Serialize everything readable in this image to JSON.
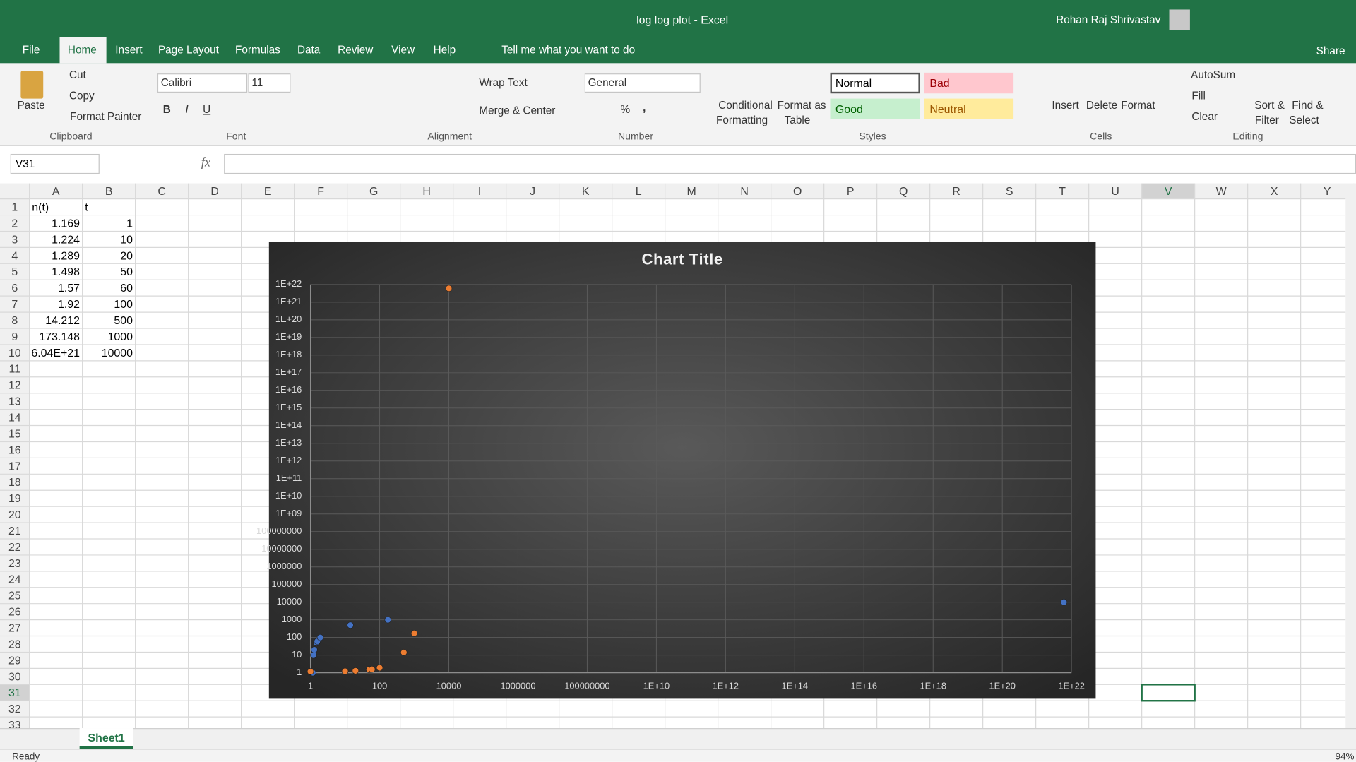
{
  "title_bar": {
    "title": "log log plot  -  Excel",
    "user": "Rohan Raj Shrivastav"
  },
  "tabs": [
    "File",
    "Home",
    "Insert",
    "Page Layout",
    "Formulas",
    "Data",
    "Review",
    "View",
    "Help"
  ],
  "tell_me": "Tell me what you want to do",
  "share": "Share",
  "ribbon": {
    "clipboard": {
      "label": "Clipboard",
      "paste": "Paste",
      "cut": "Cut",
      "copy": "Copy",
      "format_painter": "Format Painter"
    },
    "font": {
      "label": "Font",
      "name": "Calibri",
      "size": "11",
      "bold": "B",
      "italic": "I",
      "underline": "U"
    },
    "alignment": {
      "label": "Alignment",
      "wrap_text": "Wrap Text",
      "merge_center": "Merge & Center"
    },
    "number": {
      "label": "Number",
      "format": "General",
      "percent": "%",
      "comma": ","
    },
    "styles": {
      "label": "Styles",
      "conditional_formatting": [
        "Conditional",
        "Formatting"
      ],
      "format_as_table": [
        "Format as",
        "Table"
      ],
      "normal": "Normal",
      "bad": "Bad",
      "good": "Good",
      "neutral": "Neutral"
    },
    "cells": {
      "label": "Cells",
      "insert": "Insert",
      "delete": "Delete",
      "format": "Format"
    },
    "editing": {
      "label": "Editing",
      "autosum": "AutoSum",
      "fill": "Fill",
      "clear": "Clear",
      "sort_filter": [
        "Sort &",
        "Filter"
      ],
      "find_select": [
        "Find &",
        "Select"
      ]
    }
  },
  "formula_bar": {
    "name_box": "V31",
    "fx": "fx"
  },
  "sheet": {
    "column_headers": [
      "A",
      "B",
      "C",
      "D",
      "E",
      "F",
      "G",
      "H",
      "I",
      "J",
      "K",
      "L",
      "M",
      "N",
      "O",
      "P",
      "Q",
      "R",
      "S",
      "T",
      "U",
      "V",
      "W",
      "X",
      "Y"
    ],
    "row_headers": [
      1,
      2,
      3,
      4,
      5,
      6,
      7,
      8,
      9,
      10,
      11,
      12,
      13,
      14,
      15,
      16,
      17,
      18,
      19,
      20,
      21,
      22,
      23,
      24,
      25,
      26,
      27,
      28,
      29,
      30,
      31,
      32,
      33
    ],
    "cells": [
      [
        "n(t)",
        "t"
      ],
      [
        "1.169",
        "1"
      ],
      [
        "1.224",
        "10"
      ],
      [
        "1.289",
        "20"
      ],
      [
        "1.498",
        "50"
      ],
      [
        "1.57",
        "60"
      ],
      [
        "1.92",
        "100"
      ],
      [
        "14.212",
        "500"
      ],
      [
        "173.148",
        "1000"
      ],
      [
        "6.04E+21",
        "10000"
      ]
    ]
  },
  "sheet_tabs": [
    "Sheet1"
  ],
  "status_bar": {
    "status": "Ready",
    "zoom": "94%"
  },
  "chart_data": {
    "type": "scatter",
    "title": "Chart Title",
    "xlog": true,
    "ylog": true,
    "grid": true,
    "series": [
      {
        "color": "#4472c4",
        "x": [
          1.169,
          1.224,
          1.289,
          1.498,
          1.57,
          1.92,
          14.212,
          173.148,
          6.04e+21
        ],
        "values": [
          1,
          10,
          20,
          50,
          60,
          100,
          500,
          1000,
          10000
        ]
      },
      {
        "color": "#ed7d31",
        "x": [
          1,
          10,
          20,
          50,
          60,
          100,
          500,
          1000,
          10000
        ],
        "values": [
          1.169,
          1.224,
          1.289,
          1.498,
          1.57,
          1.92,
          14.212,
          173.148,
          6.04e+21
        ]
      }
    ],
    "xlim": [
      1,
      1e+22
    ],
    "ylim": [
      1,
      1e+22
    ],
    "xticks": [
      1,
      100,
      10000,
      1000000,
      100000000,
      {
        "value": 10000000000.0,
        "label": "1E+10"
      },
      {
        "value": 1000000000000.0,
        "label": "1E+12"
      },
      {
        "value": 100000000000000.0,
        "label": "1E+14"
      },
      {
        "value": 1e+16,
        "label": "1E+16"
      },
      {
        "value": 1e+18,
        "label": "1E+18"
      },
      {
        "value": 1e+20,
        "label": "1E+20"
      },
      {
        "value": 1e+22,
        "label": "1E+22"
      }
    ],
    "yticks": [
      1,
      10,
      100,
      1000,
      10000,
      100000,
      1000000,
      10000000,
      100000000,
      {
        "value": 1000000000.0,
        "label": "1E+09"
      },
      {
        "value": 10000000000.0,
        "label": "1E+10"
      },
      {
        "value": 100000000000.0,
        "label": "1E+11"
      },
      {
        "value": 1000000000000.0,
        "label": "1E+12"
      },
      {
        "value": 10000000000000.0,
        "label": "1E+13"
      },
      {
        "value": 100000000000000.0,
        "label": "1E+14"
      },
      {
        "value": 1000000000000000.0,
        "label": "1E+15"
      },
      {
        "value": 1e+16,
        "label": "1E+16"
      },
      {
        "value": 1e+17,
        "label": "1E+17"
      },
      {
        "value": 1e+18,
        "label": "1E+18"
      },
      {
        "value": 1e+19,
        "label": "1E+19"
      },
      {
        "value": 1e+20,
        "label": "1E+20"
      },
      {
        "value": 1e+21,
        "label": "1E+21"
      },
      {
        "value": 1e+22,
        "label": "1E+22"
      }
    ]
  }
}
